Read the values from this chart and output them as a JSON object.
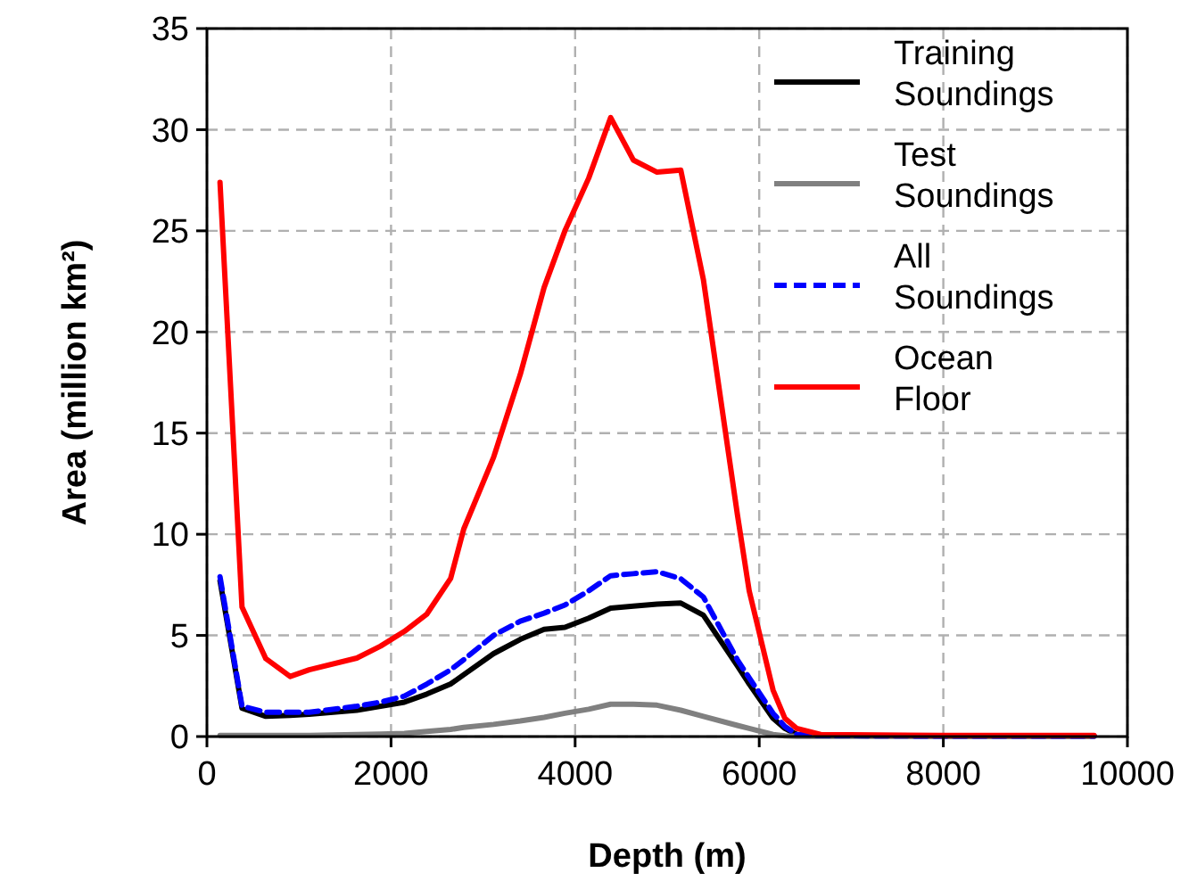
{
  "chart_data": {
    "type": "line",
    "xlabel": "Depth (m)",
    "ylabel": "Area (million km²)",
    "xlim": [
      0,
      10000
    ],
    "ylim": [
      0,
      35
    ],
    "xticks": [
      0,
      2000,
      4000,
      6000,
      8000,
      10000
    ],
    "yticks": [
      0,
      5,
      10,
      15,
      20,
      25,
      30,
      35
    ],
    "grid": true,
    "legend": "top right",
    "marker": "none",
    "x": [
      142,
      381,
      640,
      904,
      1111,
      1628,
      1886,
      2145,
      2390,
      2648,
      2790,
      3114,
      3404,
      3663,
      3889,
      4147,
      4386,
      4632,
      4890,
      5148,
      5393,
      5762,
      5891,
      6150,
      6279,
      6408,
      6667,
      8000,
      9638
    ],
    "series": [
      {
        "name": "Training Soundings",
        "color": "#000000",
        "line_style": "solid",
        "values": [
          7.7,
          1.4,
          1.0,
          1.05,
          1.1,
          1.3,
          1.5,
          1.7,
          2.1,
          2.6,
          3.06,
          4.1,
          4.8,
          5.3,
          5.4,
          5.85,
          6.35,
          6.45,
          6.55,
          6.6,
          6.0,
          3.5,
          2.6,
          0.9,
          0.4,
          0.1,
          0.05,
          0.02,
          0.02
        ]
      },
      {
        "name": "Test Soundings",
        "color": "#808080",
        "line_style": "solid",
        "values": [
          0.05,
          0.05,
          0.05,
          0.05,
          0.05,
          0.1,
          0.12,
          0.15,
          0.25,
          0.35,
          0.45,
          0.6,
          0.77,
          0.95,
          1.15,
          1.35,
          1.6,
          1.6,
          1.55,
          1.3,
          1.0,
          0.55,
          0.4,
          0.1,
          0.03,
          0.01,
          0.01,
          0.01,
          0.01
        ]
      },
      {
        "name": "All Soundings",
        "color": "#0000ff",
        "line_style": "dashed",
        "values": [
          7.9,
          1.5,
          1.2,
          1.2,
          1.2,
          1.5,
          1.7,
          2.0,
          2.6,
          3.3,
          3.8,
          5.0,
          5.7,
          6.1,
          6.5,
          7.2,
          7.95,
          8.05,
          8.15,
          7.8,
          6.9,
          3.8,
          2.9,
          1.15,
          0.5,
          0.1,
          0.05,
          0.02,
          0.02
        ]
      },
      {
        "name": "Ocean Floor",
        "color": "#ff0000",
        "line_style": "solid",
        "values": [
          27.4,
          6.4,
          3.85,
          2.97,
          3.3,
          3.88,
          4.47,
          5.2,
          6.06,
          7.82,
          10.26,
          13.8,
          17.9,
          22.2,
          25.0,
          27.6,
          30.6,
          28.5,
          27.9,
          28.0,
          22.6,
          11.0,
          7.2,
          2.3,
          0.9,
          0.4,
          0.1,
          0.05,
          0.05
        ]
      }
    ]
  }
}
